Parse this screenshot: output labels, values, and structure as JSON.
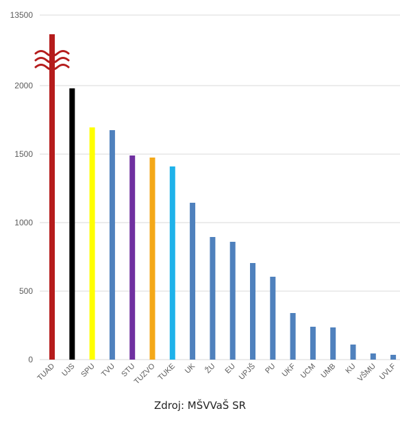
{
  "chart_data": {
    "type": "bar",
    "categories": [
      "TUAD",
      "UJS",
      "SPU",
      "TVU",
      "STU",
      "TUZVO",
      "TUKE",
      "UK",
      "ŽU",
      "EU",
      "UPJŠ",
      "PU",
      "UKF",
      "UCM",
      "UMB",
      "KU",
      "VŠMU",
      "UVLF"
    ],
    "values": [
      13500,
      1980,
      1695,
      1675,
      1490,
      1475,
      1410,
      1145,
      895,
      860,
      705,
      605,
      340,
      240,
      235,
      110,
      45,
      35
    ],
    "colors": [
      "#b51c1c",
      "#000000",
      "#ffff00",
      "#4f81bd",
      "#7030a0",
      "#f4a818",
      "#1fb2ea",
      "#4f81bd",
      "#4f81bd",
      "#4f81bd",
      "#4f81bd",
      "#4f81bd",
      "#4f81bd",
      "#4f81bd",
      "#4f81bd",
      "#4f81bd",
      "#4f81bd",
      "#4f81bd"
    ],
    "y_ticks": [
      "0",
      "500",
      "1000",
      "1500",
      "2000",
      "13500"
    ],
    "axis_break": {
      "between": [
        2000,
        13500
      ]
    },
    "grid": true,
    "title": "",
    "xlabel": "",
    "ylabel": ""
  },
  "source_note": "Zdroj: MŠVVaŠ SR",
  "colors": {
    "grid": "#d9d9d9",
    "axis_text": "#595959",
    "break_mark": "#b51c1c"
  }
}
